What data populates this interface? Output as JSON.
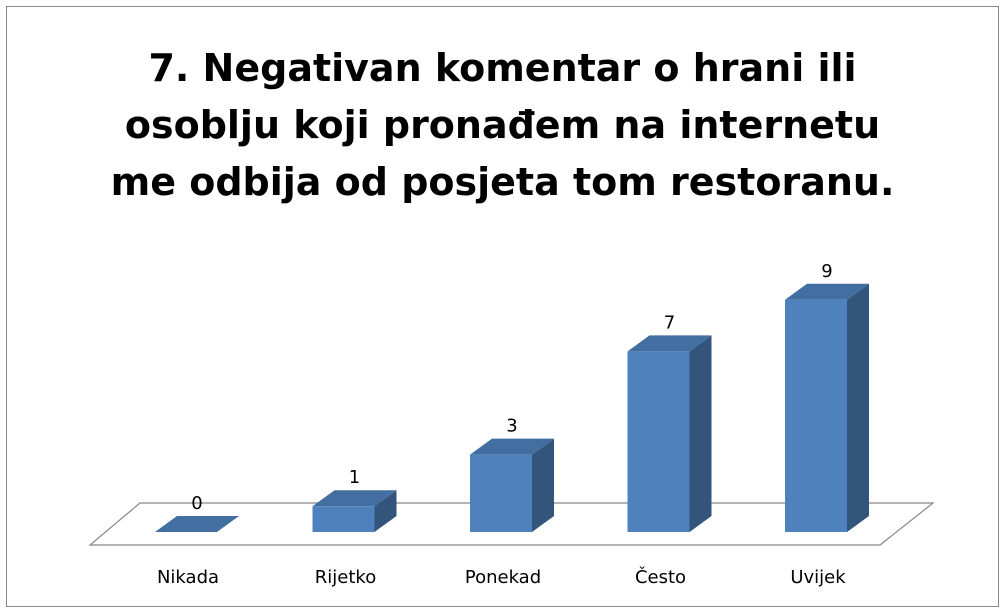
{
  "chart_data": {
    "type": "bar3d",
    "title": "7. Negativan komentar o hrani ili osoblju koji pronađem na internetu me odbija od posjeta tom restoranu.",
    "categories": [
      "Nikada",
      "Rijetko",
      "Ponekad",
      "Često",
      "Uvijek"
    ],
    "values": [
      0,
      1,
      3,
      7,
      9
    ],
    "color": "#4f81bd"
  }
}
